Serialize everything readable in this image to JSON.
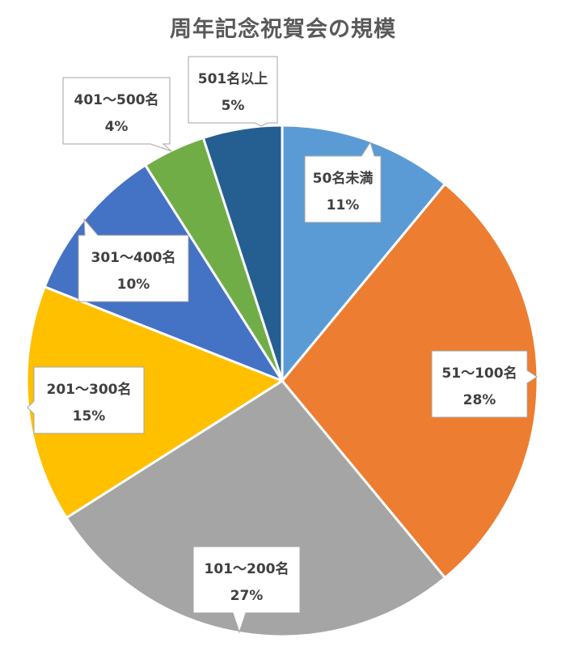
{
  "chart_data": {
    "type": "pie",
    "title": "周年記念祝賀会の規模",
    "categories": [
      "50名未満",
      "51～100名",
      "101～200名",
      "201～300名",
      "301～400名",
      "401～500名",
      "501名以上"
    ],
    "values": [
      11,
      28,
      27,
      15,
      10,
      4,
      5
    ],
    "value_labels": [
      "11%",
      "28%",
      "27%",
      "15%",
      "10%",
      "4%",
      "5%"
    ],
    "colors": [
      "#5b9bd5",
      "#ed7d31",
      "#a5a5a5",
      "#ffc000",
      "#4472c4",
      "#70ad47",
      "#255e91"
    ],
    "start_angle_deg": 0,
    "direction": "clockwise",
    "legend": "none",
    "data_labels": "callouts"
  }
}
